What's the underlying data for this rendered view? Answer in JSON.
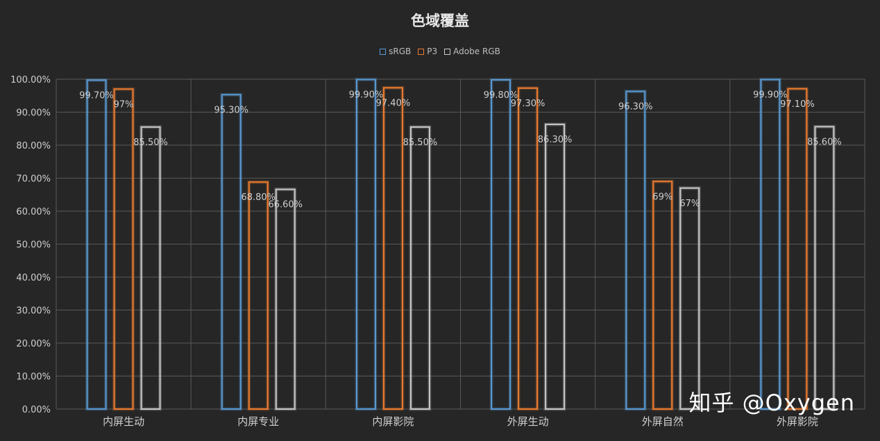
{
  "chart_data": {
    "type": "bar",
    "title": "色域覆盖",
    "categories": [
      "内屏生动",
      "内屏专业",
      "内屏影院",
      "外屏生动",
      "外屏自然",
      "外屏影院"
    ],
    "series": [
      {
        "name": "sRGB",
        "color": "#5b9bd5",
        "values": [
          99.7,
          95.3,
          99.9,
          99.8,
          96.3,
          99.9
        ],
        "labels": [
          "99.70%",
          "95.30%",
          "99.90%",
          "99.80%",
          "96.30%",
          "99.90%"
        ]
      },
      {
        "name": "P3",
        "color": "#ed7d31",
        "values": [
          97,
          68.8,
          97.4,
          97.3,
          69,
          97.1
        ],
        "labels": [
          "97%",
          "68.80%",
          "97.40%",
          "97.30%",
          "69%",
          "97.10%"
        ]
      },
      {
        "name": "Adobe RGB",
        "color": "#c9c9c9",
        "values": [
          85.5,
          66.6,
          85.5,
          86.3,
          67,
          85.6
        ],
        "labels": [
          "85.50%",
          "66.60%",
          "85.50%",
          "86.30%",
          "67%",
          "85.60%"
        ]
      }
    ],
    "yticks": [
      "0.00%",
      "10.00%",
      "20.00%",
      "30.00%",
      "40.00%",
      "50.00%",
      "60.00%",
      "70.00%",
      "80.00%",
      "90.00%",
      "100.00%"
    ],
    "ylim": [
      0,
      100
    ],
    "grid": true,
    "legend_position": "top"
  },
  "watermark": "知乎 @Oxygen"
}
